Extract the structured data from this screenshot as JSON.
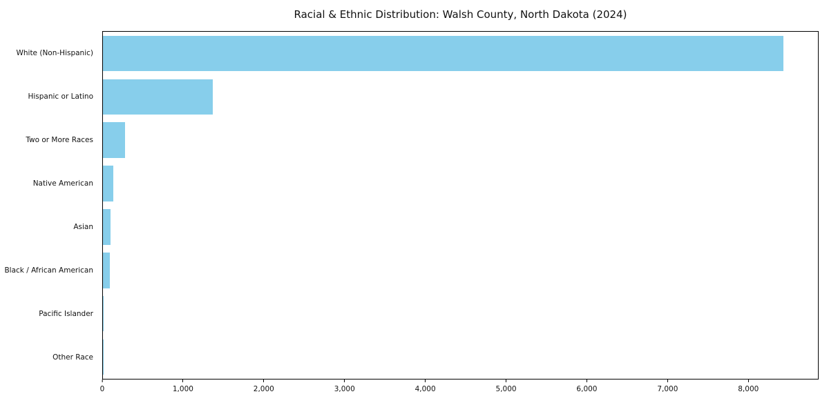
{
  "chart_data": {
    "type": "bar",
    "orientation": "horizontal",
    "title": "Racial & Ethnic Distribution: Walsh County, North Dakota (2024)",
    "categories": [
      "White (Non-Hispanic)",
      "Hispanic or Latino",
      "Two or More Races",
      "Native American",
      "Asian",
      "Black / African American",
      "Pacific Islander",
      "Other Race"
    ],
    "values": [
      8440,
      1360,
      275,
      130,
      95,
      85,
      5,
      5
    ],
    "xlabel": "",
    "ylabel": "",
    "xlim": [
      0,
      8870
    ],
    "xticks": [
      0,
      1000,
      2000,
      3000,
      4000,
      5000,
      6000,
      7000,
      8000
    ],
    "xtick_labels": [
      "0",
      "1,000",
      "2,000",
      "3,000",
      "4,000",
      "5,000",
      "6,000",
      "7,000",
      "8,000"
    ],
    "bar_color": "#87CEEB",
    "legend": false,
    "grid": false
  }
}
